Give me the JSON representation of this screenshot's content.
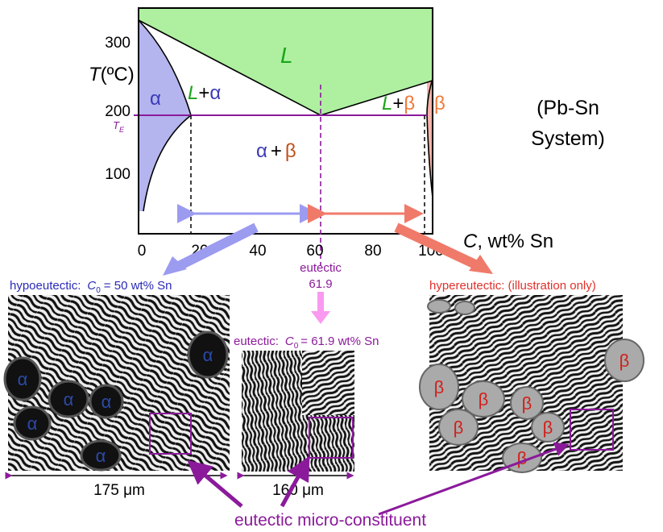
{
  "diagram": {
    "y_axis": {
      "var": "T",
      "unit": "(ºC)"
    },
    "y_ticks": [
      "300",
      "200",
      "100"
    ],
    "te": {
      "var": "T",
      "sub": "E"
    },
    "x_ticks": [
      "0",
      "20",
      "40",
      "60",
      "80",
      "100"
    ],
    "x_axis": {
      "var": "C",
      "unit": ", wt% Sn"
    },
    "regions": {
      "liquid": "L",
      "alpha": "α",
      "l_alpha": {
        "l": "L",
        "plus": "+",
        "phase": "α"
      },
      "alpha_beta": {
        "a": "α",
        "plus": "+",
        "b": "β"
      },
      "l_beta": {
        "l": "L",
        "plus": "+",
        "phase": "β"
      },
      "beta": "β"
    },
    "system": [
      "(Pb-Sn",
      "System)"
    ],
    "eutectic_point": [
      "eutectic",
      "61.9"
    ]
  },
  "panels": {
    "hypo": {
      "prefix": "hypoeutectic:",
      "var": "C",
      "sub": "0",
      "rest": "= 50 wt% Sn",
      "phase": "α",
      "scale": "175 μm"
    },
    "eutectic": {
      "prefix": "eutectic:",
      "var": "C",
      "sub": "0",
      "rest": "= 61.9 wt% Sn",
      "scale": "160 μm"
    },
    "hyper": {
      "label": "hypereutectic: (illustration only)",
      "phase": "β"
    }
  },
  "footer": "eutectic micro-constituent"
}
